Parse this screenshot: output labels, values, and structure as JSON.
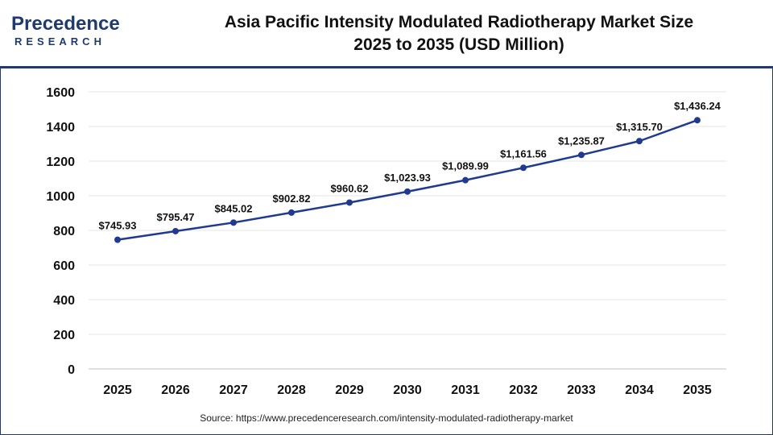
{
  "logo": {
    "top": "Precedence",
    "bottom": "RESEARCH"
  },
  "title": {
    "line1_a": "Asia Pacific",
    "line1_b": "Intensity Modulated Radiotherapy Market Size",
    "line2": "2025 to 2035 (USD Million)"
  },
  "source": "Source: https://www.precedenceresearch.com/intensity-modulated-radiotherapy-market",
  "colors": {
    "line": "#1f3a8f",
    "marker": "#1f3a8f",
    "grid": "#e6e6e6",
    "brand": "#1f3a6e"
  },
  "chart_data": {
    "type": "line",
    "categories": [
      "2025",
      "2026",
      "2027",
      "2028",
      "2029",
      "2030",
      "2031",
      "2032",
      "2033",
      "2034",
      "2035"
    ],
    "series": [
      {
        "values": [
          745.93,
          795.47,
          845.02,
          902.82,
          960.62,
          1023.93,
          1089.99,
          1161.56,
          1235.87,
          1315.7,
          1436.24
        ],
        "labels": [
          "$745.93",
          "$795.47",
          "$845.02",
          "$902.82",
          "$960.62",
          "$1,023.93",
          "$1,089.99",
          "$1,161.56",
          "$1,235.87",
          "$1,315.70",
          "$1,436.24"
        ]
      }
    ],
    "ylim": [
      0,
      1600
    ],
    "yticks": [
      "0",
      "200",
      "400",
      "600",
      "800",
      "1000",
      "1200",
      "1400",
      "1600"
    ],
    "grid": true,
    "xlabel": "",
    "ylabel": ""
  }
}
